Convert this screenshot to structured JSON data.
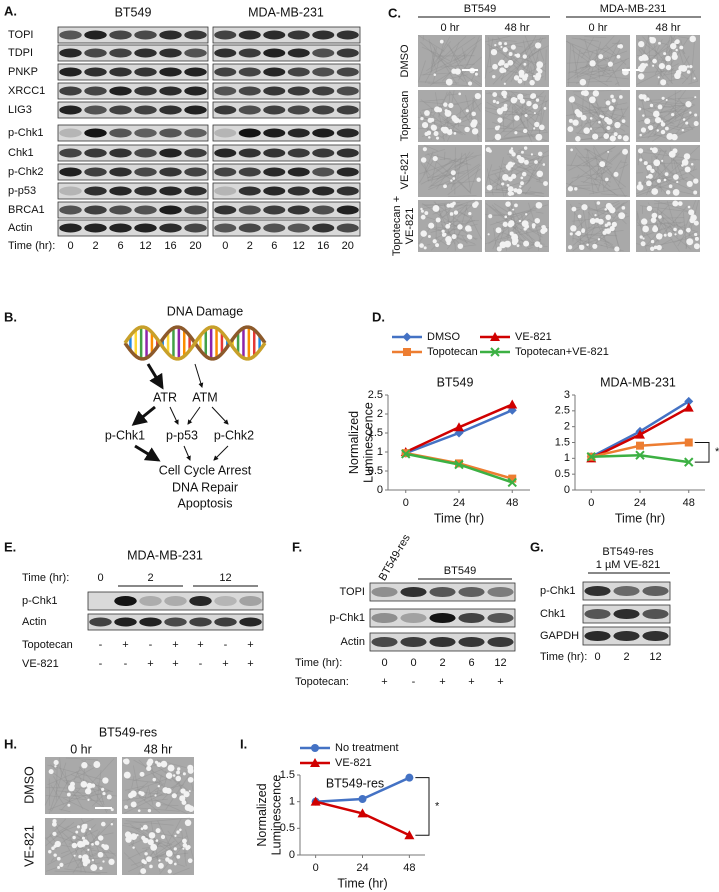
{
  "panel_A": {
    "letter": "A.",
    "cell_lines": [
      "BT549",
      "MDA-MB-231"
    ],
    "proteins": [
      "TOPI",
      "TDPI",
      "PNKP",
      "XRCC1",
      "LIG3",
      "p-Chk1",
      "Chk1",
      "p-Chk2",
      "p-p53",
      "BRCA1",
      "Actin"
    ],
    "time_label": "Time (hr):",
    "times": [
      0,
      2,
      6,
      12,
      16,
      20
    ]
  },
  "panel_B": {
    "letter": "B.",
    "top": "DNA Damage",
    "kinases": [
      "ATR",
      "ATM"
    ],
    "effectors": [
      "p-Chk1",
      "p-p53",
      "p-Chk2"
    ],
    "outcomes": [
      "Cell Cycle Arrest",
      "DNA Repair",
      "Apoptosis"
    ]
  },
  "panel_C": {
    "letter": "C.",
    "cell_lines": [
      "BT549",
      "MDA-MB-231"
    ],
    "timepoints": [
      "0 hr",
      "48 hr"
    ],
    "treatments": [
      "DMSO",
      "Topotecan",
      "VE-821"
    ],
    "combo": [
      "Topotecan +",
      "VE-821"
    ]
  },
  "panel_D": {
    "letter": "D."
  },
  "panel_E": {
    "letter": "E.",
    "cell_line": "MDA-MB-231",
    "time_label": "Time (hr):",
    "times": [
      0,
      2,
      12
    ],
    "proteins": [
      "p-Chk1",
      "Actin"
    ],
    "conditions": [
      {
        "name": "Topotecan",
        "signs": [
          "-",
          "+",
          "-",
          "+",
          "+",
          "-",
          "+"
        ]
      },
      {
        "name": "VE-821",
        "signs": [
          "-",
          "-",
          "+",
          "+",
          "-",
          "+",
          "+"
        ]
      }
    ]
  },
  "panel_F": {
    "letter": "F.",
    "resistant": "BT549-res",
    "cell_line": "BT549",
    "proteins": [
      "TOPI",
      "p-Chk1",
      "Actin"
    ],
    "time_label": "Time (hr):",
    "times": [
      0,
      0,
      2,
      6,
      12
    ],
    "treatment_label": "Topotecan:",
    "signs": [
      "+",
      "-",
      "+",
      "+",
      "+"
    ]
  },
  "panel_G": {
    "letter": "G.",
    "cell_line": "BT549-res",
    "treatment": "1 µM VE-821",
    "proteins": [
      "p-Chk1",
      "Chk1",
      "GAPDH"
    ],
    "time_label": "Time (hr):",
    "times": [
      0,
      2,
      12
    ]
  },
  "panel_H": {
    "letter": "H.",
    "cell_line": "BT549-res",
    "timepoints": [
      "0 hr",
      "48 hr"
    ],
    "treatments": [
      "DMSO",
      "VE-821"
    ]
  },
  "panel_I": {
    "letter": "I."
  },
  "chart_data": [
    {
      "type": "line",
      "title": "BT549",
      "ylabel": "Normalized Luminescence",
      "xlabel": "Time (hr)",
      "legend": "top",
      "x": [
        0,
        24,
        48
      ],
      "xlim": [
        -8,
        56
      ],
      "xticks": [
        0,
        24,
        48
      ],
      "ylim": [
        0,
        2.5
      ],
      "yticks": [
        0,
        0.5,
        1,
        1.5,
        2,
        2.5
      ],
      "series": [
        {
          "name": "DMSO",
          "color": "#4472c4",
          "marker": "diamond",
          "values": [
            0.97,
            1.5,
            2.1
          ]
        },
        {
          "name": "VE-821",
          "color": "#d00000",
          "marker": "triangle",
          "values": [
            1,
            1.65,
            2.25
          ]
        },
        {
          "name": "Topotecan",
          "color": "#ed7d31",
          "marker": "square",
          "values": [
            0.97,
            0.7,
            0.3
          ]
        },
        {
          "name": "Topotecan+VE-821",
          "color": "#3cb043",
          "marker": "x",
          "values": [
            0.95,
            0.67,
            0.2
          ]
        }
      ]
    },
    {
      "type": "line",
      "title": "MDA-MB-231",
      "xlabel": "Time (hr)",
      "annotation": "*",
      "x": [
        0,
        24,
        48
      ],
      "xlim": [
        -8,
        56
      ],
      "xticks": [
        0,
        24,
        48
      ],
      "ylim": [
        0,
        3
      ],
      "yticks": [
        0,
        0.5,
        1,
        1.5,
        2,
        2.5,
        3
      ],
      "series": [
        {
          "color": "#4472c4",
          "marker": "diamond",
          "values": [
            1.05,
            1.85,
            2.8
          ]
        },
        {
          "color": "#d00000",
          "marker": "triangle",
          "values": [
            1,
            1.75,
            2.6
          ]
        },
        {
          "color": "#ed7d31",
          "marker": "square",
          "values": [
            1.05,
            1.4,
            1.5
          ]
        },
        {
          "color": "#3cb043",
          "marker": "x",
          "values": [
            1.05,
            1.1,
            0.88
          ]
        }
      ]
    },
    {
      "type": "line",
      "title": "BT549-res",
      "ylabel": "Normalized Luminescence",
      "xlabel": "Time (hr)",
      "legend": "top",
      "annotation": "*",
      "x": [
        0,
        24,
        48
      ],
      "xlim": [
        -8,
        56
      ],
      "xticks": [
        0,
        24,
        48
      ],
      "ylim": [
        0,
        1.5
      ],
      "yticks": [
        0,
        0.5,
        1,
        1.5
      ],
      "series": [
        {
          "name": "No treatment",
          "color": "#4472c4",
          "marker": "circle",
          "values": [
            1,
            1.05,
            1.45
          ]
        },
        {
          "name": "VE-821",
          "color": "#d00000",
          "marker": "triangle",
          "values": [
            1,
            0.78,
            0.37
          ]
        }
      ]
    }
  ]
}
